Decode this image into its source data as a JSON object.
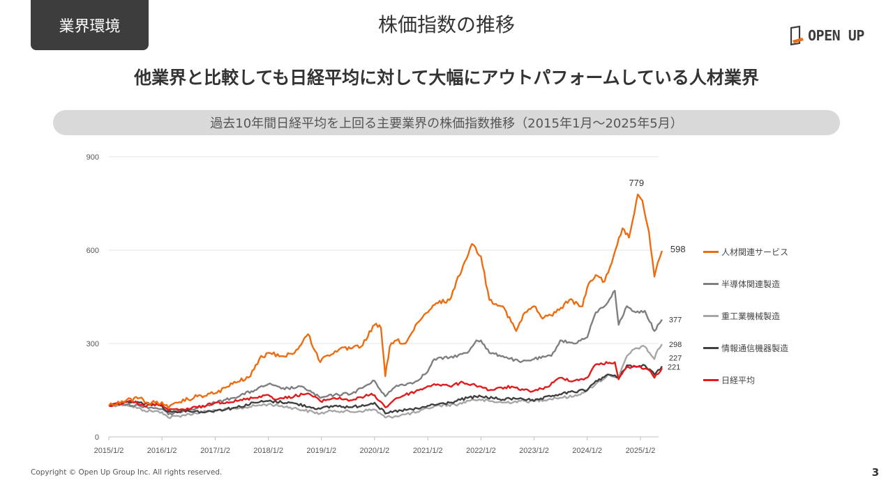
{
  "header": {
    "tag": "業界環境",
    "title": "株価指数の推移",
    "logo_text": "OPEN UP"
  },
  "headline": "他業界と比較しても日経平均に対して大幅にアウトパフォームしている人材業界",
  "subtitle": "過去10年間日経平均を上回る主要業界の株価指数推移（2015年1月～2025年5月）",
  "footer": {
    "copyright": "Copyright © Open Up Group Inc. All rights reserved.",
    "page_number": "3"
  },
  "chart_data": {
    "type": "line",
    "x_start": "2015/1/2",
    "x_end": "2025/5/30",
    "x_ticks": [
      "2015/1/2",
      "2016/1/2",
      "2017/1/2",
      "2018/1/2",
      "2019/1/2",
      "2020/1/2",
      "2021/1/2",
      "2022/1/2",
      "2023/1/2",
      "2024/1/2",
      "2025/1/2"
    ],
    "ylim": [
      0,
      900
    ],
    "y_ticks": [
      0,
      300,
      600,
      900
    ],
    "grid": "horizontal",
    "legend_position": "right",
    "annotations": [
      {
        "text": "779",
        "x": "2024/12/15",
        "y": 779
      }
    ],
    "series": [
      {
        "name": "人材関連サービス",
        "color": "#ee6c10",
        "end_label": "598",
        "points": [
          [
            "2015/1/2",
            100
          ],
          [
            "2015/4/1",
            115
          ],
          [
            "2015/8/1",
            125
          ],
          [
            "2015/10/1",
            108
          ],
          [
            "2016/1/2",
            112
          ],
          [
            "2016/2/15",
            92
          ],
          [
            "2016/5/1",
            112
          ],
          [
            "2016/9/1",
            130
          ],
          [
            "2017/1/2",
            140
          ],
          [
            "2017/5/1",
            170
          ],
          [
            "2017/9/1",
            195
          ],
          [
            "2017/11/1",
            250
          ],
          [
            "2018/1/2",
            270
          ],
          [
            "2018/4/1",
            260
          ],
          [
            "2018/7/1",
            270
          ],
          [
            "2018/10/1",
            330
          ],
          [
            "2018/12/25",
            240
          ],
          [
            "2019/2/1",
            260
          ],
          [
            "2019/5/1",
            280
          ],
          [
            "2019/8/1",
            285
          ],
          [
            "2019/10/1",
            290
          ],
          [
            "2020/1/2",
            360
          ],
          [
            "2020/2/15",
            350
          ],
          [
            "2020/3/16",
            195
          ],
          [
            "2020/4/15",
            290
          ],
          [
            "2020/6/1",
            310
          ],
          [
            "2020/8/1",
            300
          ],
          [
            "2020/11/1",
            370
          ],
          [
            "2021/1/2",
            400
          ],
          [
            "2021/3/1",
            430
          ],
          [
            "2021/6/1",
            440
          ],
          [
            "2021/9/1",
            550
          ],
          [
            "2021/11/1",
            620
          ],
          [
            "2022/1/2",
            580
          ],
          [
            "2022/3/1",
            440
          ],
          [
            "2022/6/1",
            420
          ],
          [
            "2022/9/1",
            340
          ],
          [
            "2022/11/1",
            400
          ],
          [
            "2023/1/2",
            420
          ],
          [
            "2023/3/1",
            380
          ],
          [
            "2023/6/1",
            400
          ],
          [
            "2023/9/1",
            440
          ],
          [
            "2023/12/1",
            420
          ],
          [
            "2024/1/2",
            480
          ],
          [
            "2024/3/1",
            520
          ],
          [
            "2024/5/1",
            500
          ],
          [
            "2024/7/1",
            580
          ],
          [
            "2024/9/1",
            670
          ],
          [
            "2024/10/15",
            640
          ],
          [
            "2024/12/15",
            779
          ],
          [
            "2025/1/15",
            760
          ],
          [
            "2025/3/1",
            660
          ],
          [
            "2025/4/8",
            515
          ],
          [
            "2025/5/1",
            560
          ],
          [
            "2025/5/30",
            598
          ]
        ]
      },
      {
        "name": "半導体関連製造",
        "color": "#7f7f7f",
        "end_label": "377",
        "points": [
          [
            "2015/1/2",
            100
          ],
          [
            "2015/4/1",
            105
          ],
          [
            "2015/8/1",
            100
          ],
          [
            "2016/1/2",
            90
          ],
          [
            "2016/2/15",
            72
          ],
          [
            "2016/6/1",
            85
          ],
          [
            "2016/11/1",
            100
          ],
          [
            "2017/1/2",
            110
          ],
          [
            "2017/5/1",
            125
          ],
          [
            "2017/10/1",
            150
          ],
          [
            "2018/1/2",
            170
          ],
          [
            "2018/4/1",
            155
          ],
          [
            "2018/9/1",
            160
          ],
          [
            "2018/12/25",
            125
          ],
          [
            "2019/4/1",
            135
          ],
          [
            "2019/8/1",
            140
          ],
          [
            "2020/1/2",
            180
          ],
          [
            "2020/3/16",
            130
          ],
          [
            "2020/6/1",
            165
          ],
          [
            "2020/10/1",
            175
          ],
          [
            "2021/1/2",
            210
          ],
          [
            "2021/2/15",
            250
          ],
          [
            "2021/6/1",
            255
          ],
          [
            "2021/10/1",
            270
          ],
          [
            "2021/12/1",
            310
          ],
          [
            "2022/1/2",
            310
          ],
          [
            "2022/3/1",
            270
          ],
          [
            "2022/6/1",
            260
          ],
          [
            "2022/10/1",
            240
          ],
          [
            "2023/1/2",
            250
          ],
          [
            "2023/5/1",
            260
          ],
          [
            "2023/7/1",
            310
          ],
          [
            "2023/10/1",
            300
          ],
          [
            "2024/1/2",
            320
          ],
          [
            "2024/3/1",
            400
          ],
          [
            "2024/5/1",
            420
          ],
          [
            "2024/7/10",
            470
          ],
          [
            "2024/8/5",
            360
          ],
          [
            "2024/10/1",
            420
          ],
          [
            "2024/12/1",
            400
          ],
          [
            "2025/2/1",
            405
          ],
          [
            "2025/4/8",
            340
          ],
          [
            "2025/5/1",
            360
          ],
          [
            "2025/5/30",
            377
          ]
        ]
      },
      {
        "name": "重工業機械製造",
        "color": "#a6a6a6",
        "end_label": "298",
        "points": [
          [
            "2015/1/2",
            100
          ],
          [
            "2015/5/1",
            105
          ],
          [
            "2015/9/1",
            85
          ],
          [
            "2016/1/2",
            80
          ],
          [
            "2016/2/15",
            62
          ],
          [
            "2016/6/1",
            70
          ],
          [
            "2016/11/1",
            82
          ],
          [
            "2017/1/2",
            85
          ],
          [
            "2017/6/1",
            90
          ],
          [
            "2017/10/1",
            100
          ],
          [
            "2018/1/2",
            105
          ],
          [
            "2018/6/1",
            95
          ],
          [
            "2018/12/25",
            75
          ],
          [
            "2019/4/1",
            85
          ],
          [
            "2019/8/1",
            80
          ],
          [
            "2020/1/2",
            88
          ],
          [
            "2020/3/16",
            62
          ],
          [
            "2020/7/1",
            70
          ],
          [
            "2020/11/1",
            80
          ],
          [
            "2021/1/2",
            92
          ],
          [
            "2021/3/1",
            100
          ],
          [
            "2021/8/1",
            105
          ],
          [
            "2021/11/1",
            120
          ],
          [
            "2022/1/2",
            118
          ],
          [
            "2022/6/1",
            110
          ],
          [
            "2022/10/1",
            115
          ],
          [
            "2023/1/2",
            115
          ],
          [
            "2023/6/1",
            125
          ],
          [
            "2023/10/1",
            130
          ],
          [
            "2024/1/2",
            150
          ],
          [
            "2024/3/1",
            170
          ],
          [
            "2024/6/1",
            200
          ],
          [
            "2024/8/5",
            190
          ],
          [
            "2024/10/1",
            260
          ],
          [
            "2024/12/1",
            285
          ],
          [
            "2025/2/1",
            290
          ],
          [
            "2025/4/8",
            250
          ],
          [
            "2025/5/1",
            280
          ],
          [
            "2025/5/30",
            298
          ]
        ]
      },
      {
        "name": "情報通信機器製造",
        "color": "#404040",
        "end_label": "227",
        "points": [
          [
            "2015/1/2",
            100
          ],
          [
            "2015/5/1",
            112
          ],
          [
            "2015/8/1",
            110
          ],
          [
            "2016/1/2",
            100
          ],
          [
            "2016/2/15",
            80
          ],
          [
            "2016/6/1",
            85
          ],
          [
            "2016/11/1",
            80
          ],
          [
            "2017/1/2",
            85
          ],
          [
            "2017/6/1",
            95
          ],
          [
            "2017/10/1",
            110
          ],
          [
            "2018/1/2",
            115
          ],
          [
            "2018/6/1",
            110
          ],
          [
            "2018/12/25",
            90
          ],
          [
            "2019/4/1",
            100
          ],
          [
            "2019/8/1",
            95
          ],
          [
            "2020/1/2",
            110
          ],
          [
            "2020/3/16",
            75
          ],
          [
            "2020/7/1",
            85
          ],
          [
            "2020/11/1",
            90
          ],
          [
            "2021/1/2",
            100
          ],
          [
            "2021/6/1",
            110
          ],
          [
            "2021/10/1",
            125
          ],
          [
            "2022/1/2",
            130
          ],
          [
            "2022/6/1",
            120
          ],
          [
            "2022/10/1",
            125
          ],
          [
            "2023/1/2",
            115
          ],
          [
            "2023/6/1",
            135
          ],
          [
            "2023/10/1",
            145
          ],
          [
            "2024/1/2",
            150
          ],
          [
            "2024/3/1",
            180
          ],
          [
            "2024/6/1",
            200
          ],
          [
            "2024/8/5",
            190
          ],
          [
            "2024/10/1",
            230
          ],
          [
            "2024/12/1",
            225
          ],
          [
            "2025/2/1",
            230
          ],
          [
            "2025/4/8",
            200
          ],
          [
            "2025/5/30",
            227
          ]
        ]
      },
      {
        "name": "日経平均",
        "color": "#e31a1c",
        "end_label": "221",
        "points": [
          [
            "2015/1/2",
            100
          ],
          [
            "2015/6/1",
            116
          ],
          [
            "2015/9/1",
            100
          ],
          [
            "2016/1/2",
            105
          ],
          [
            "2016/2/15",
            85
          ],
          [
            "2016/6/1",
            88
          ],
          [
            "2016/11/1",
            100
          ],
          [
            "2017/1/2",
            110
          ],
          [
            "2017/6/1",
            115
          ],
          [
            "2017/11/1",
            130
          ],
          [
            "2018/1/2",
            135
          ],
          [
            "2018/3/1",
            120
          ],
          [
            "2018/10/1",
            140
          ],
          [
            "2018/12/25",
            115
          ],
          [
            "2019/4/1",
            125
          ],
          [
            "2019/8/1",
            118
          ],
          [
            "2019/12/1",
            135
          ],
          [
            "2020/1/2",
            134
          ],
          [
            "2020/3/16",
            95
          ],
          [
            "2020/6/1",
            125
          ],
          [
            "2020/11/1",
            150
          ],
          [
            "2021/2/15",
            170
          ],
          [
            "2021/6/1",
            163
          ],
          [
            "2021/9/1",
            175
          ],
          [
            "2022/1/2",
            162
          ],
          [
            "2022/3/1",
            150
          ],
          [
            "2022/8/1",
            162
          ],
          [
            "2022/10/1",
            150
          ],
          [
            "2023/1/2",
            148
          ],
          [
            "2023/4/1",
            160
          ],
          [
            "2023/7/1",
            190
          ],
          [
            "2023/10/1",
            180
          ],
          [
            "2024/1/2",
            190
          ],
          [
            "2024/3/1",
            233
          ],
          [
            "2024/7/10",
            240
          ],
          [
            "2024/8/5",
            185
          ],
          [
            "2024/10/1",
            225
          ],
          [
            "2025/1/2",
            225
          ],
          [
            "2025/3/1",
            215
          ],
          [
            "2025/4/8",
            190
          ],
          [
            "2025/5/30",
            221
          ]
        ]
      }
    ]
  }
}
